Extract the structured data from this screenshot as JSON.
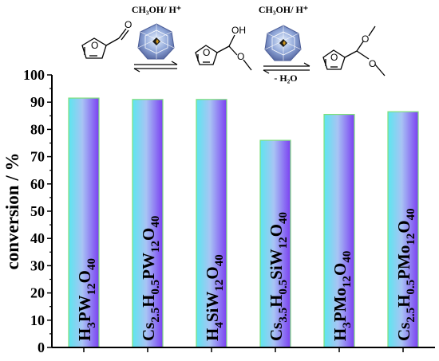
{
  "scheme": {
    "step1_reagent": "CH₃OH/ H⁺",
    "step2_reagent": "CH₃OH/ H⁺",
    "step2_byproduct": "- H₂O",
    "hydroxyl_atom": "OH",
    "oxygen_atom": "O"
  },
  "colors": {
    "bar_gradient_left": "#5ce6ef",
    "bar_gradient_mid": "#a8c4f4",
    "bar_gradient_right": "#7a3ff2",
    "bar_border": "#7ee07a",
    "axis": "#000000"
  },
  "chart_data": {
    "type": "bar",
    "ylabel": "conversion / %",
    "xlabel": "",
    "ylim": [
      0,
      100
    ],
    "yticks": [
      0,
      10,
      20,
      30,
      40,
      50,
      60,
      70,
      80,
      90,
      100
    ],
    "categories": [
      {
        "parts": [
          [
            "H",
            ""
          ],
          [
            "3",
            "sub"
          ],
          [
            "PW",
            ""
          ],
          [
            "12",
            "sub"
          ],
          [
            "O",
            ""
          ],
          [
            "40",
            "sub"
          ]
        ]
      },
      {
        "parts": [
          [
            "Cs",
            ""
          ],
          [
            "2.5",
            "sub"
          ],
          [
            "H",
            ""
          ],
          [
            "0.5",
            "sub"
          ],
          [
            "PW",
            ""
          ],
          [
            "12",
            "sub"
          ],
          [
            "O",
            ""
          ],
          [
            "40",
            "sub"
          ]
        ]
      },
      {
        "parts": [
          [
            "H",
            ""
          ],
          [
            "4",
            "sub"
          ],
          [
            "SiW",
            ""
          ],
          [
            "12",
            "sub"
          ],
          [
            "O",
            ""
          ],
          [
            "40",
            "sub"
          ]
        ]
      },
      {
        "parts": [
          [
            "Cs",
            ""
          ],
          [
            "3.5",
            "sub"
          ],
          [
            "H",
            ""
          ],
          [
            "0.5",
            "sub"
          ],
          [
            "SiW",
            ""
          ],
          [
            "12",
            "sub"
          ],
          [
            "O",
            ""
          ],
          [
            "40",
            "sub"
          ]
        ]
      },
      {
        "parts": [
          [
            "H",
            ""
          ],
          [
            "3",
            "sub"
          ],
          [
            "PMo",
            ""
          ],
          [
            "12",
            "sub"
          ],
          [
            "O",
            ""
          ],
          [
            "40",
            "sub"
          ]
        ]
      },
      {
        "parts": [
          [
            "Cs",
            ""
          ],
          [
            "2.5",
            "sub"
          ],
          [
            "H",
            ""
          ],
          [
            "0.5",
            "sub"
          ],
          [
            "PMo",
            ""
          ],
          [
            "12",
            "sub"
          ],
          [
            "O",
            ""
          ],
          [
            "40",
            "sub"
          ]
        ]
      }
    ],
    "values": [
      91.5,
      91,
      91,
      76,
      85.5,
      86.5
    ],
    "grid": false
  }
}
